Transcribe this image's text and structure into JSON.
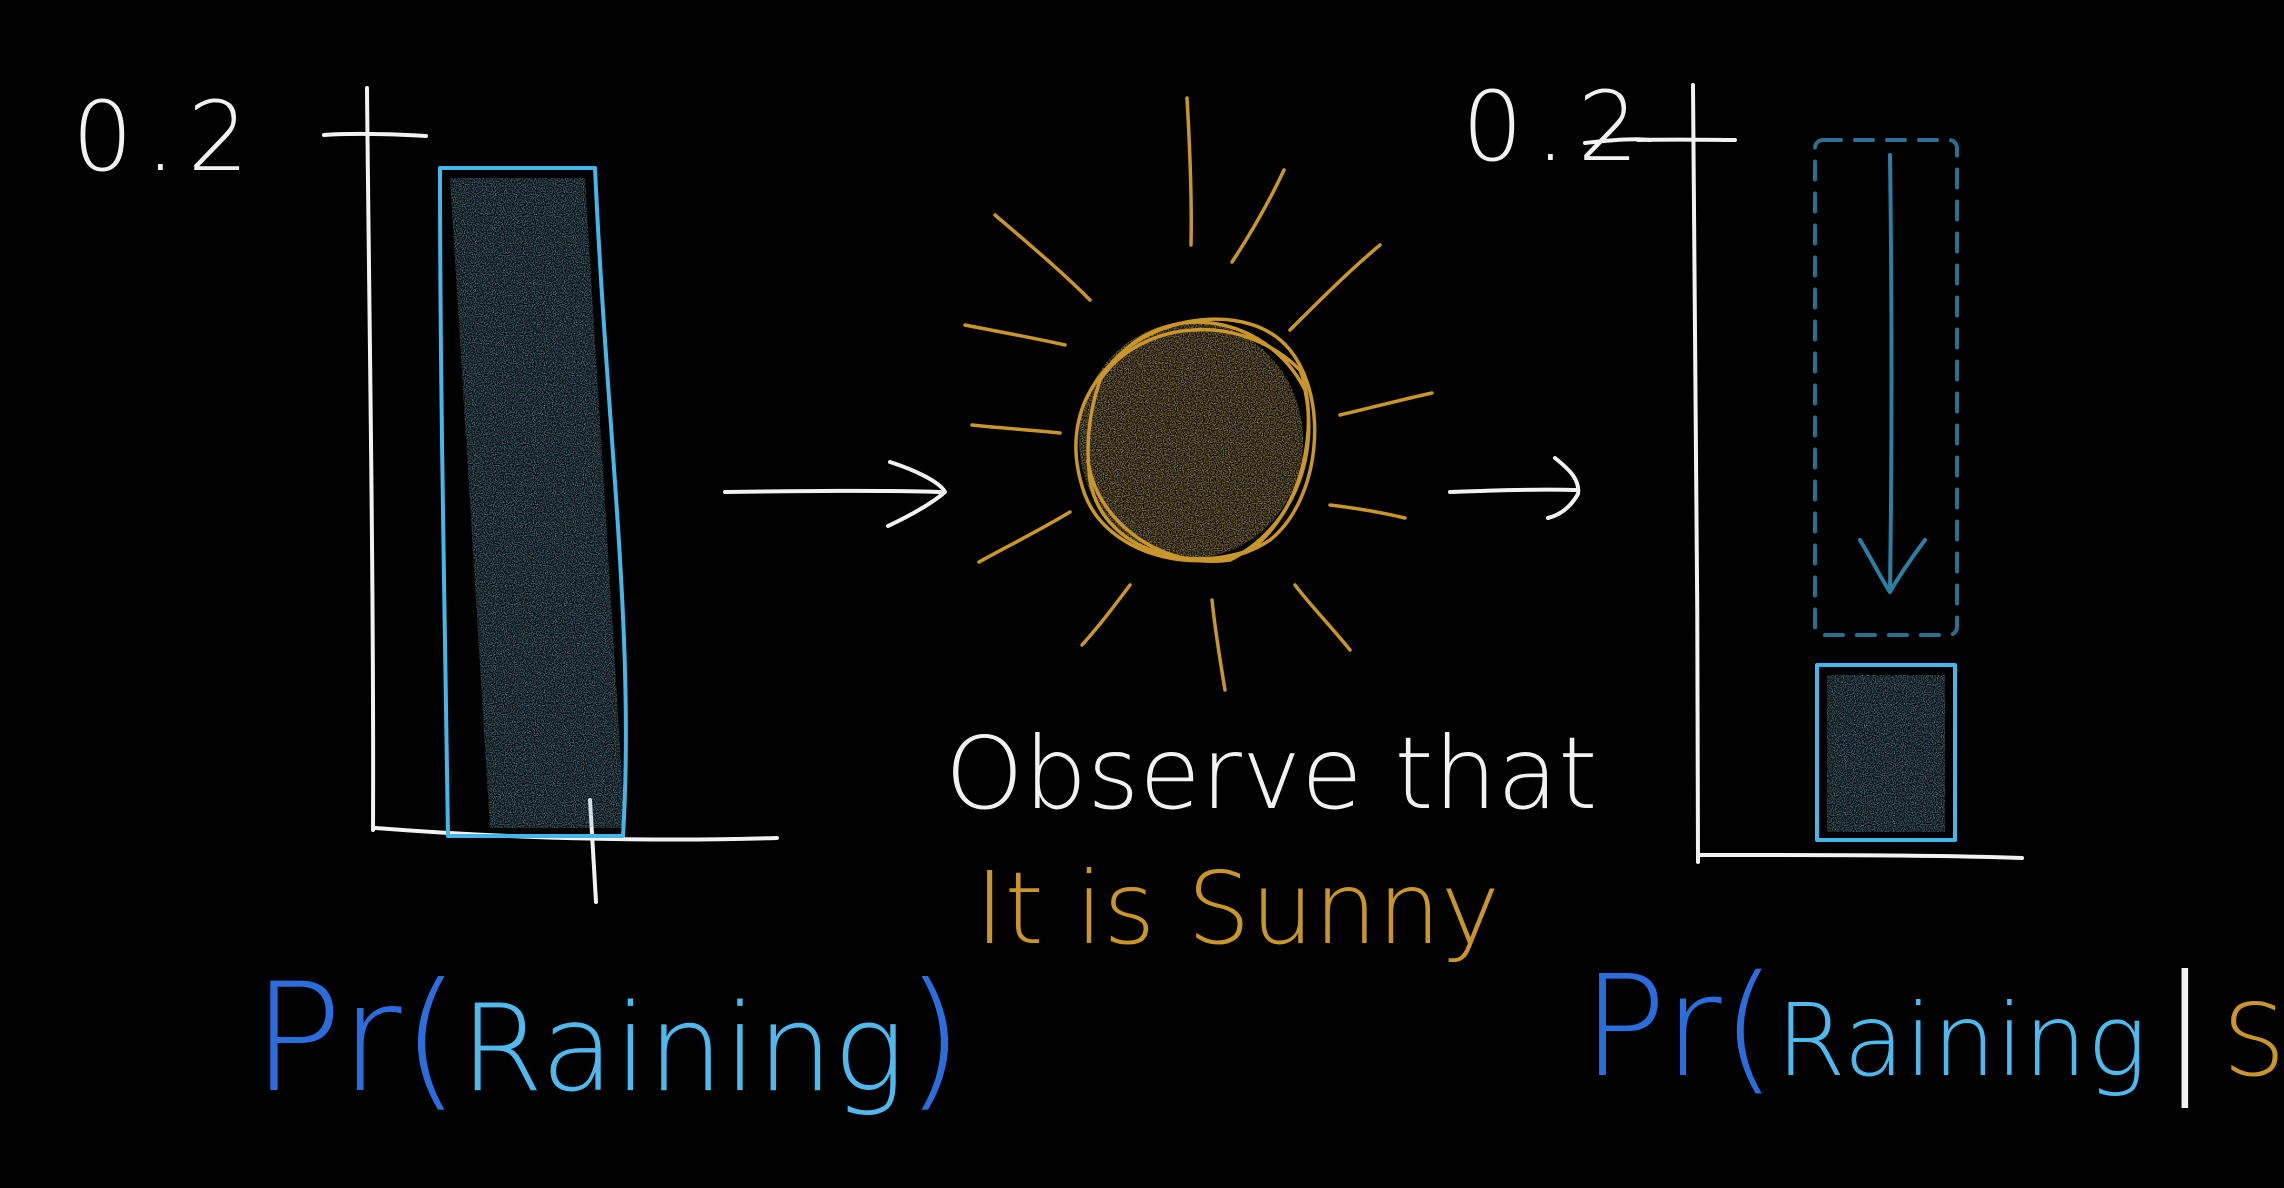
{
  "left_axis": {
    "tick_label": "0.2"
  },
  "right_axis": {
    "tick_label": "0.2"
  },
  "left_label": {
    "prefix": "Pr(",
    "event": "Raining",
    "suffix": ")"
  },
  "right_label": {
    "prefix": "Pr(",
    "event": "Raining",
    "separator": "|",
    "condition": "Sunny",
    "suffix": ")"
  },
  "observation": {
    "line1": "Observe that",
    "line2": "It is Sunny"
  },
  "colors": {
    "background": "#000000",
    "ink": "#f2f2f2",
    "bar_outline": "#45b6ea",
    "bar_fill": "#1d4f68",
    "label_blue": "#2b6ddc",
    "label_cyan": "#4fb8ec",
    "sun": "#c8962a",
    "dashed_outline": "#2c6f8e"
  },
  "icons": [
    "sun-icon",
    "right-arrow-icon",
    "down-arrow-icon"
  ],
  "chart_data": [
    {
      "type": "bar",
      "categories": [
        "Raining"
      ],
      "values": [
        0.2
      ],
      "ylim": [
        0,
        0.2
      ]
    },
    {
      "type": "bar",
      "categories": [
        "Raining | Sunny"
      ],
      "values": [
        0.05
      ],
      "ylim": [
        0,
        0.2
      ]
    }
  ]
}
